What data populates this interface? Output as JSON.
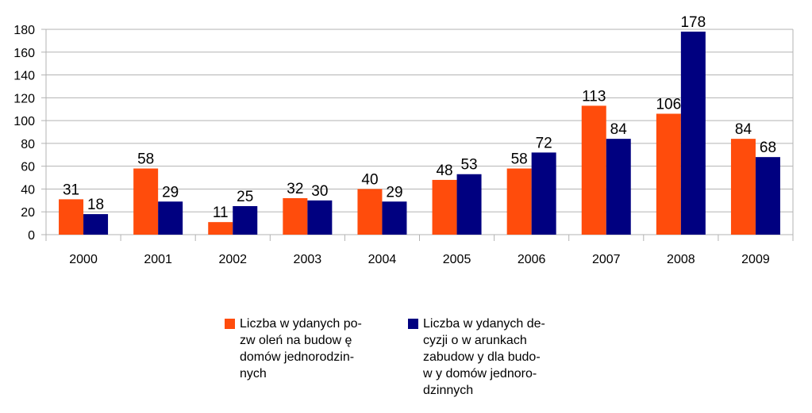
{
  "colors": {
    "series1": "#ff4c0c",
    "series2": "#000080",
    "grid": "#b3b3b3",
    "axis": "#b3b3b3"
  },
  "chart_data": {
    "type": "bar",
    "categories": [
      "2000",
      "2001",
      "2002",
      "2003",
      "2004",
      "2005",
      "2006",
      "2007",
      "2008",
      "2009"
    ],
    "series": [
      {
        "name": "Liczba w ydanych po-zw oleń na budow ę domów jednorodzin-nych",
        "values": [
          31,
          58,
          11,
          32,
          40,
          48,
          58,
          113,
          106,
          84
        ],
        "color": "#ff4c0c"
      },
      {
        "name": "Liczba w ydanych de-cyzji o w arunkach zabudow y dla budo-w y domów jednoro-dzinnych",
        "values": [
          18,
          29,
          25,
          30,
          29,
          53,
          72,
          84,
          178,
          68
        ],
        "color": "#000080"
      }
    ],
    "ylim": [
      0,
      180
    ],
    "yticks": [
      0,
      20,
      40,
      60,
      80,
      100,
      120,
      140,
      160,
      180
    ],
    "grid": true,
    "legend": "bottom",
    "data_labels": true,
    "title": "",
    "xlabel": "",
    "ylabel": ""
  },
  "legend": {
    "items": [
      {
        "lines": [
          "Liczba w ydanych po-",
          "zw oleń na budow ę",
          "domów  jednorodzin-",
          "nych"
        ]
      },
      {
        "lines": [
          "Liczba w ydanych de-",
          "cyzji o w arunkach",
          "zabudow y dla budo-",
          "w y domów  jednoro-",
          "dzinnych"
        ]
      }
    ]
  }
}
